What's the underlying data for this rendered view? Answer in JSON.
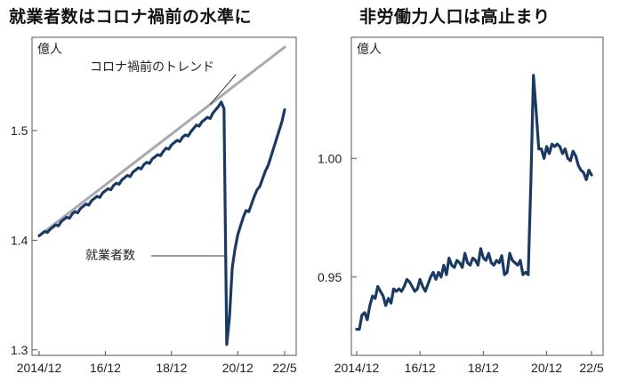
{
  "chart_data": [
    {
      "type": "line",
      "title": "就業者数はコロナ禍前の水準に",
      "unit": "億人",
      "xticks": [
        "2014/12",
        "16/12",
        "18/12",
        "20/12",
        "22/5"
      ],
      "yticks": [
        "1.3",
        "1.4",
        "1.5"
      ],
      "ylim": [
        1.295,
        1.585
      ],
      "grid": false,
      "annotations": [
        "コロナ禍前のトレンド",
        "就業者数"
      ],
      "series": [
        {
          "name": "就業者数",
          "color": "#1b3a63",
          "x": [
            0,
            1,
            2,
            3,
            4,
            5,
            6,
            7,
            8,
            9,
            10,
            11,
            12,
            13,
            14,
            15,
            16,
            17,
            18,
            19,
            20,
            21,
            22,
            23,
            24,
            25,
            26,
            27,
            28,
            29,
            30,
            31,
            32,
            33,
            34,
            35,
            36,
            37,
            38,
            39,
            40,
            41,
            42,
            43,
            44,
            45,
            46,
            47,
            48,
            49,
            50,
            51,
            52,
            53,
            54,
            55,
            56,
            57,
            58,
            59,
            60,
            61,
            62,
            63,
            64,
            65,
            66,
            67,
            68,
            69,
            70,
            71,
            72,
            73,
            74,
            75,
            76,
            77,
            78,
            79,
            80,
            81,
            82,
            83,
            84,
            85,
            86,
            87,
            88,
            89
          ],
          "values": [
            1.404,
            1.406,
            1.408,
            1.407,
            1.41,
            1.412,
            1.414,
            1.413,
            1.417,
            1.419,
            1.421,
            1.42,
            1.424,
            1.426,
            1.425,
            1.429,
            1.431,
            1.433,
            1.432,
            1.436,
            1.438,
            1.44,
            1.439,
            1.443,
            1.445,
            1.447,
            1.446,
            1.45,
            1.452,
            1.451,
            1.455,
            1.457,
            1.459,
            1.458,
            1.462,
            1.464,
            1.466,
            1.465,
            1.469,
            1.471,
            1.47,
            1.474,
            1.476,
            1.478,
            1.477,
            1.481,
            1.484,
            1.483,
            1.487,
            1.489,
            1.491,
            1.49,
            1.494,
            1.496,
            1.495,
            1.499,
            1.502,
            1.505,
            1.504,
            1.508,
            1.51,
            1.512,
            1.511,
            1.516,
            1.519,
            1.522,
            1.526,
            1.52,
            1.305,
            1.33,
            1.375,
            1.392,
            1.405,
            1.413,
            1.421,
            1.427,
            1.426,
            1.433,
            1.44,
            1.446,
            1.449,
            1.456,
            1.463,
            1.468,
            1.476,
            1.484,
            1.492,
            1.5,
            1.508,
            1.519
          ]
        },
        {
          "name": "コロナ禍前のトレンド",
          "color": "#a9a9b3",
          "x": [
            0,
            89
          ],
          "values": [
            1.404,
            1.576
          ]
        }
      ]
    },
    {
      "type": "line",
      "title": "非労働力人口は高止まり",
      "unit": "億人",
      "xticks": [
        "2014/12",
        "16/12",
        "18/12",
        "20/12",
        "22/5"
      ],
      "yticks": [
        "0.95",
        "1.00"
      ],
      "ylim": [
        0.917,
        1.051
      ],
      "grid": false,
      "series": [
        {
          "name": "非労働力人口",
          "color": "#1b3a63",
          "x": [
            0,
            1,
            2,
            3,
            4,
            5,
            6,
            7,
            8,
            9,
            10,
            11,
            12,
            13,
            14,
            15,
            16,
            17,
            18,
            19,
            20,
            21,
            22,
            23,
            24,
            25,
            26,
            27,
            28,
            29,
            30,
            31,
            32,
            33,
            34,
            35,
            36,
            37,
            38,
            39,
            40,
            41,
            42,
            43,
            44,
            45,
            46,
            47,
            48,
            49,
            50,
            51,
            52,
            53,
            54,
            55,
            56,
            57,
            58,
            59,
            60,
            61,
            62,
            63,
            64,
            65,
            66,
            67,
            68,
            69,
            70,
            71,
            72,
            73,
            74,
            75,
            76,
            77,
            78,
            79,
            80,
            81,
            82,
            83,
            84,
            85,
            86,
            87,
            88,
            89
          ],
          "values": [
            0.928,
            0.928,
            0.934,
            0.935,
            0.932,
            0.938,
            0.942,
            0.941,
            0.946,
            0.944,
            0.942,
            0.938,
            0.941,
            0.939,
            0.945,
            0.944,
            0.945,
            0.944,
            0.946,
            0.949,
            0.948,
            0.946,
            0.944,
            0.945,
            0.949,
            0.946,
            0.944,
            0.947,
            0.95,
            0.952,
            0.949,
            0.952,
            0.95,
            0.955,
            0.951,
            0.958,
            0.955,
            0.954,
            0.957,
            0.956,
            0.954,
            0.96,
            0.956,
            0.955,
            0.958,
            0.957,
            0.955,
            0.962,
            0.958,
            0.957,
            0.96,
            0.956,
            0.955,
            0.957,
            0.956,
            0.959,
            0.951,
            0.952,
            0.96,
            0.957,
            0.956,
            0.955,
            0.957,
            0.951,
            0.952,
            0.951,
            0.99,
            1.035,
            1.02,
            1.004,
            1.004,
            1.0,
            1.005,
            1.002,
            1.006,
            1.005,
            1.006,
            1.005,
            1.002,
            1.004,
            1.0,
            0.999,
            1.003,
            1.001,
            0.997,
            0.995,
            0.994,
            0.991,
            0.995,
            0.993
          ]
        }
      ]
    }
  ]
}
